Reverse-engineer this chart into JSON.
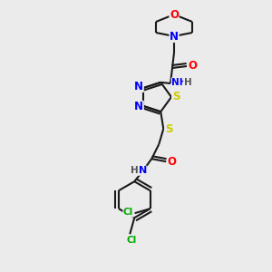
{
  "bg_color": "#ebebeb",
  "bond_color": "#1a1a1a",
  "colors": {
    "O": "#ff0000",
    "N": "#0000ff",
    "S": "#cccc00",
    "Cl": "#00aa00",
    "C": "#1a1a1a",
    "H": "#555555"
  },
  "font_size": 8.0,
  "lw": 1.5
}
